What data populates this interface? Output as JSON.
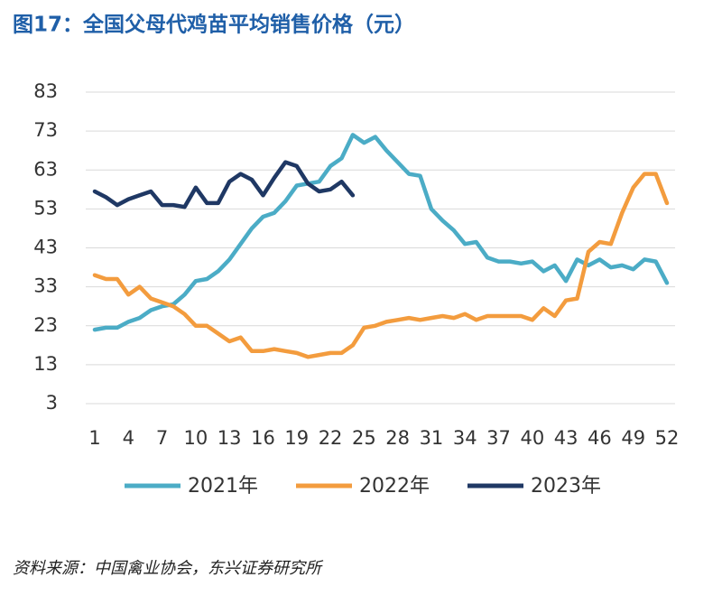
{
  "chart_data": {
    "type": "line",
    "title": "图17：全国父母代鸡苗平均销售价格（元）",
    "source": "资料来源：中国禽业协会，东兴证券研究所",
    "x": [
      1,
      2,
      3,
      4,
      5,
      6,
      7,
      8,
      9,
      10,
      11,
      12,
      13,
      14,
      15,
      16,
      17,
      18,
      19,
      20,
      21,
      22,
      23,
      24,
      25,
      26,
      27,
      28,
      29,
      30,
      31,
      32,
      33,
      34,
      35,
      36,
      37,
      38,
      39,
      40,
      41,
      42,
      43,
      44,
      45,
      46,
      47,
      48,
      49,
      50,
      51,
      52
    ],
    "xlim": [
      1,
      52
    ],
    "xticks": [
      1,
      4,
      7,
      10,
      13,
      16,
      19,
      22,
      25,
      28,
      31,
      34,
      37,
      40,
      43,
      46,
      49,
      52
    ],
    "ylim": [
      3,
      83
    ],
    "yticks": [
      3,
      13,
      23,
      33,
      43,
      53,
      63,
      73,
      83
    ],
    "grid": true,
    "legend": "bottom",
    "series": [
      {
        "name": "2021年",
        "color": "#4bacc6",
        "values": [
          22,
          22.5,
          22.5,
          24,
          25,
          27,
          28,
          28.5,
          31,
          34.5,
          35,
          37,
          40,
          44,
          48,
          51,
          52,
          55,
          59,
          59.5,
          60,
          64,
          66,
          72,
          70,
          71.5,
          68,
          65,
          62,
          61.5,
          53,
          50,
          47.5,
          44,
          44.5,
          40.5,
          39.5,
          39.5,
          39,
          39.5,
          37,
          38.5,
          34.5,
          40,
          38.5,
          40,
          38,
          38.5,
          37.5,
          40,
          39.5,
          34
        ]
      },
      {
        "name": "2022年",
        "color": "#f39c3e",
        "values": [
          36,
          35,
          35,
          31,
          33,
          30,
          29,
          28,
          26,
          23,
          23,
          21,
          19,
          20,
          16.5,
          16.5,
          17,
          16.5,
          16,
          15,
          15.5,
          16,
          16,
          18,
          22.5,
          23,
          24,
          24.5,
          25,
          24.5,
          25,
          25.5,
          25,
          26,
          24.5,
          25.5,
          25.5,
          25.5,
          25.5,
          24.5,
          27.5,
          25.5,
          29.5,
          30,
          42,
          44.5,
          44,
          52,
          58.5,
          62,
          62,
          54.5
        ]
      },
      {
        "name": "2023年",
        "color": "#1f3864",
        "values": [
          57.5,
          56,
          54,
          55.5,
          56.5,
          57.5,
          54,
          54,
          53.5,
          58.5,
          54.5,
          54.5,
          60,
          62,
          60.5,
          56.5,
          61,
          65,
          64,
          59.5,
          57.5,
          58,
          60,
          56.5,
          null,
          null,
          null,
          null,
          null,
          null,
          null,
          null,
          null,
          null,
          null,
          null,
          null,
          null,
          null,
          null,
          null,
          null,
          null,
          null,
          null,
          null,
          null,
          null,
          null,
          null,
          null,
          null
        ]
      }
    ]
  }
}
